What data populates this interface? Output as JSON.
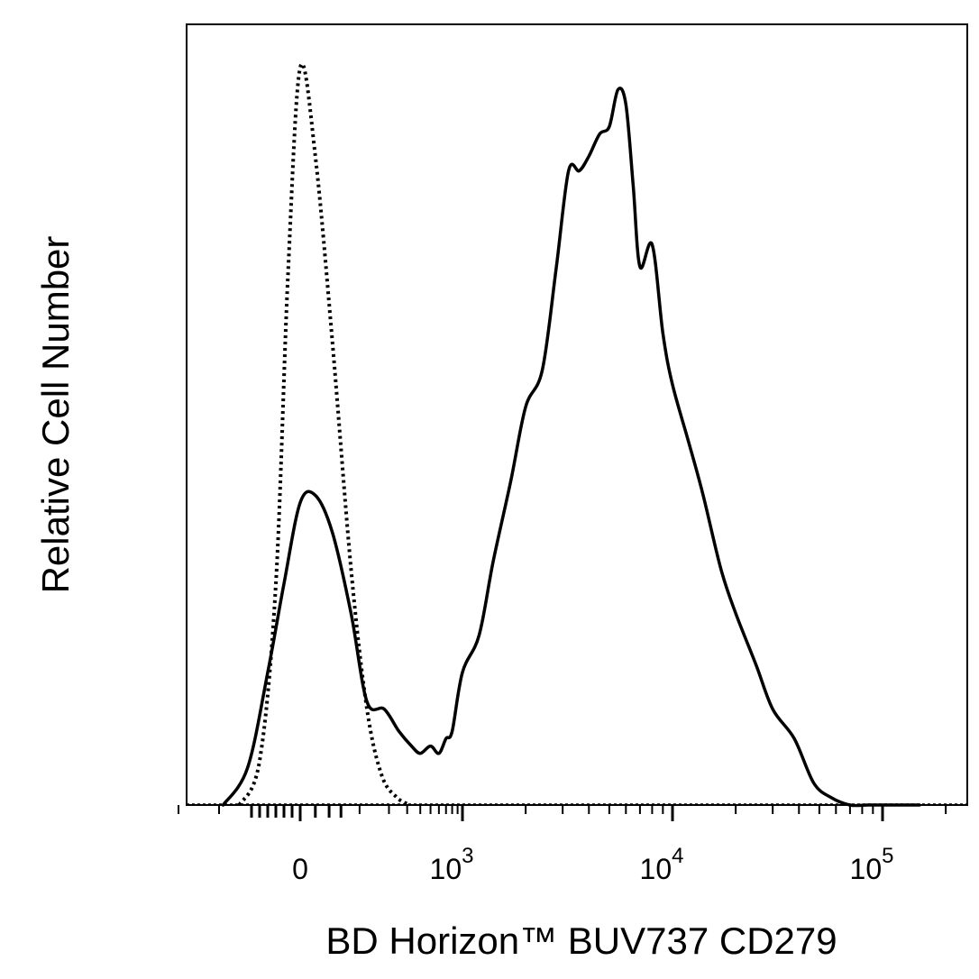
{
  "chart_data": {
    "type": "line",
    "title": "",
    "xlabel": "BD Horizon™ BUV737 CD279",
    "ylabel": "Relative Cell Number",
    "x_scale": "biexponential",
    "xlim": [
      -400,
      200000
    ],
    "ylim": [
      0,
      100
    ],
    "grid": false,
    "legend": "none",
    "x_ticks": [
      {
        "value": 0,
        "base": "0",
        "exp": ""
      },
      {
        "value": 1000,
        "base": "10",
        "exp": "3"
      },
      {
        "value": 10000,
        "base": "10",
        "exp": "4"
      },
      {
        "value": 100000,
        "base": "10",
        "exp": "5"
      }
    ],
    "series": [
      {
        "style": "dotted",
        "color": "#000000",
        "x": [
          -150,
          -100,
          -60,
          -30,
          0,
          20,
          45,
          80,
          120,
          170,
          240,
          320
        ],
        "y": [
          0,
          6,
          30,
          72,
          100,
          88,
          63,
          32,
          13,
          4,
          1,
          0
        ]
      },
      {
        "style": "solid",
        "color": "#000000",
        "x": [
          -190,
          -130,
          -80,
          -40,
          0,
          20,
          45,
          80,
          120,
          180,
          250,
          330,
          400,
          500,
          600,
          700,
          800,
          1000,
          1200,
          1400,
          1700,
          2000,
          2400,
          2800,
          3200,
          3600,
          4000,
          4500,
          5000,
          5500,
          6000,
          6500,
          7000,
          8000,
          9000,
          10000,
          12000,
          14000,
          17000,
          20000,
          25000,
          30000,
          38000,
          47000,
          57000,
          70000,
          85000,
          100000,
          150000
        ],
        "y": [
          0,
          5,
          18,
          30,
          41,
          42,
          37,
          26,
          14,
          13,
          10,
          8,
          7,
          8,
          7,
          9,
          10,
          18,
          23,
          33,
          44,
          54,
          59,
          73,
          86,
          86,
          88,
          91,
          92,
          97,
          95,
          84,
          73,
          76,
          64,
          57,
          49,
          42,
          32,
          26,
          19,
          13,
          9,
          3,
          1,
          0,
          0,
          0,
          0
        ]
      }
    ]
  }
}
